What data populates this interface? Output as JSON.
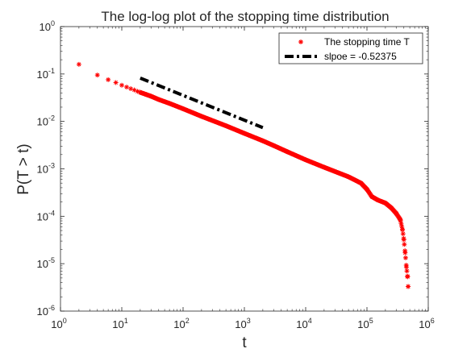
{
  "chart_data": {
    "type": "scatter",
    "title": "The log-log plot of the stopping time distribution",
    "xlabel": "t",
    "ylabel": "P(T > t)",
    "xscale": "log",
    "yscale": "log",
    "xlim": [
      1,
      1000000
    ],
    "ylim": [
      1e-06,
      1
    ],
    "x_ticks": [
      {
        "base": "10",
        "exp": "0"
      },
      {
        "base": "10",
        "exp": "1"
      },
      {
        "base": "10",
        "exp": "2"
      },
      {
        "base": "10",
        "exp": "3"
      },
      {
        "base": "10",
        "exp": "4"
      },
      {
        "base": "10",
        "exp": "5"
      },
      {
        "base": "10",
        "exp": "6"
      }
    ],
    "y_ticks": [
      {
        "base": "10",
        "exp": "-6"
      },
      {
        "base": "10",
        "exp": "-5"
      },
      {
        "base": "10",
        "exp": "-4"
      },
      {
        "base": "10",
        "exp": "-3"
      },
      {
        "base": "10",
        "exp": "-2"
      },
      {
        "base": "10",
        "exp": "-1"
      },
      {
        "base": "10",
        "exp": "0"
      }
    ],
    "grid": false,
    "legend_position": "top-right",
    "series": [
      {
        "name": "The stopping time T",
        "marker": "asterisk",
        "color": "#ff0000",
        "x": [
          2,
          4,
          6,
          8,
          10,
          12,
          14,
          16,
          18,
          20,
          25,
          30,
          40,
          60,
          100,
          200,
          500,
          1000,
          2000,
          3000,
          5000,
          10000,
          20000,
          50000,
          80000,
          100000,
          120000,
          150000,
          200000,
          250000,
          300000,
          350000,
          380000,
          400000,
          420000,
          440000,
          460000,
          470000
        ],
        "y": [
          0.16,
          0.095,
          0.076,
          0.066,
          0.058,
          0.053,
          0.049,
          0.046,
          0.043,
          0.041,
          0.037,
          0.034,
          0.029,
          0.024,
          0.0185,
          0.0128,
          0.0081,
          0.0056,
          0.0039,
          0.0031,
          0.0023,
          0.00155,
          0.00108,
          0.00068,
          0.0005,
          0.00037,
          0.00026,
          0.00022,
          0.00019,
          0.00015,
          0.000115,
          8.5e-05,
          5.2e-05,
          3.2e-05,
          1.7e-05,
          8.5e-06,
          5.3e-06,
          3.3e-06
        ]
      },
      {
        "name": "slpoe = -0.52375",
        "line": "dash-dot",
        "color": "#000000",
        "x": [
          20,
          2000
        ],
        "y": [
          0.082,
          0.0074
        ]
      }
    ]
  }
}
